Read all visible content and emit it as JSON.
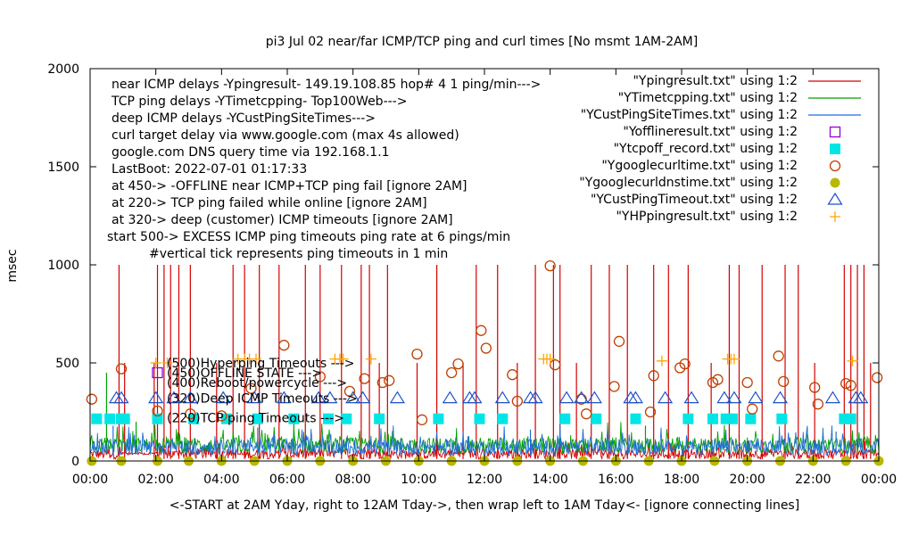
{
  "chart_data": {
    "type": "scatter",
    "title": "pi3 Jul 02  near/far ICMP/TCP ping and curl times [No msmt 1AM-2AM]",
    "xlabel": "<-START at 2AM Yday, right to 12AM Tday->, then wrap left to 1AM Tday<- [ignore connecting lines]",
    "ylabel": "msec",
    "xlim": [
      0,
      24
    ],
    "ylim": [
      0,
      2000
    ],
    "x_ticks": [
      {
        "v": 0,
        "label": "00:00"
      },
      {
        "v": 2,
        "label": "02:00"
      },
      {
        "v": 4,
        "label": "04:00"
      },
      {
        "v": 6,
        "label": "06:00"
      },
      {
        "v": 8,
        "label": "08:00"
      },
      {
        "v": 10,
        "label": "10:00"
      },
      {
        "v": 12,
        "label": "12:00"
      },
      {
        "v": 14,
        "label": "14:00"
      },
      {
        "v": 16,
        "label": "16:00"
      },
      {
        "v": 18,
        "label": "18:00"
      },
      {
        "v": 20,
        "label": "20:00"
      },
      {
        "v": 22,
        "label": "22:00"
      },
      {
        "v": 24,
        "label": "00:00"
      }
    ],
    "y_ticks": [
      {
        "v": 0,
        "label": "0"
      },
      {
        "v": 500,
        "label": "500"
      },
      {
        "v": 1000,
        "label": "1000"
      },
      {
        "v": 1500,
        "label": "1500"
      },
      {
        "v": 2000,
        "label": "2000"
      }
    ],
    "notes": [
      "near ICMP delays -Ypingresult- 149.19.108.85 hop# 4 1 ping/min--->",
      "TCP ping delays -YTimetcpping- Top100Web--->",
      "deep ICMP delays -YCustPingSiteTimes--->",
      "curl target delay via www.google.com (max 4s allowed)",
      "google.com DNS query time via 192.168.1.1",
      "LastBoot: 2022-07-01 01:17:33",
      "at 450-> -OFFLINE near ICMP+TCP ping fail [ignore 2AM]",
      "at 220-> TCP ping failed while online [ignore 2AM]",
      "at 320-> deep (customer) ICMP timeouts [ignore 2AM]",
      "start 500-> EXCESS ICMP ping timeouts ping rate at 6 pings/min",
      "#vertical tick represents ping timeouts in 1 min"
    ],
    "level_labels": [
      {
        "y": 500,
        "label": "(500)Hyperping Timeouts --->"
      },
      {
        "y": 450,
        "label": "(450)OFFLINE STATE --->"
      },
      {
        "y": 400,
        "label": "(400)Reboot/powercycle --->"
      },
      {
        "y": 320,
        "label": "(320)Deep ICMP Timeouts --->"
      },
      {
        "y": 220,
        "label": "(220)TCP ping Timeouts --->"
      }
    ],
    "legend_position": "top-right",
    "series": [
      {
        "name": "\"Ypingresult.txt\" using 1:2",
        "style": "line",
        "color": "#d40000",
        "baseline": [
          10,
          60
        ],
        "spikes": [
          {
            "x": 0.88,
            "y": 1000
          },
          {
            "x": 1.05,
            "y": 500
          },
          {
            "x": 1.95,
            "y": 500
          },
          {
            "x": 2.05,
            "y": 1000
          },
          {
            "x": 2.25,
            "y": 1000
          },
          {
            "x": 2.45,
            "y": 1000
          },
          {
            "x": 2.7,
            "y": 1000
          },
          {
            "x": 3.05,
            "y": 1000
          },
          {
            "x": 3.85,
            "y": 500
          },
          {
            "x": 4.35,
            "y": 1000
          },
          {
            "x": 4.7,
            "y": 1000
          },
          {
            "x": 5.15,
            "y": 1000
          },
          {
            "x": 5.75,
            "y": 1000
          },
          {
            "x": 6.55,
            "y": 1000
          },
          {
            "x": 7.0,
            "y": 1000
          },
          {
            "x": 7.65,
            "y": 1000
          },
          {
            "x": 8.25,
            "y": 1000
          },
          {
            "x": 8.5,
            "y": 1000
          },
          {
            "x": 8.8,
            "y": 500
          },
          {
            "x": 9.05,
            "y": 1000
          },
          {
            "x": 9.95,
            "y": 500
          },
          {
            "x": 10.55,
            "y": 1000
          },
          {
            "x": 11.35,
            "y": 500
          },
          {
            "x": 11.75,
            "y": 1000
          },
          {
            "x": 12.4,
            "y": 1000
          },
          {
            "x": 13.0,
            "y": 500
          },
          {
            "x": 13.55,
            "y": 1000
          },
          {
            "x": 14.1,
            "y": 1000
          },
          {
            "x": 14.3,
            "y": 1000
          },
          {
            "x": 14.8,
            "y": 500
          },
          {
            "x": 15.25,
            "y": 1000
          },
          {
            "x": 15.8,
            "y": 1000
          },
          {
            "x": 16.35,
            "y": 1000
          },
          {
            "x": 17.15,
            "y": 1000
          },
          {
            "x": 17.6,
            "y": 1000
          },
          {
            "x": 18.2,
            "y": 1000
          },
          {
            "x": 18.9,
            "y": 500
          },
          {
            "x": 19.45,
            "y": 1000
          },
          {
            "x": 19.75,
            "y": 1000
          },
          {
            "x": 20.45,
            "y": 1000
          },
          {
            "x": 21.15,
            "y": 1000
          },
          {
            "x": 21.55,
            "y": 1000
          },
          {
            "x": 22.05,
            "y": 500
          },
          {
            "x": 22.95,
            "y": 1000
          },
          {
            "x": 23.15,
            "y": 1000
          },
          {
            "x": 23.35,
            "y": 1000
          },
          {
            "x": 23.55,
            "y": 1000
          },
          {
            "x": 23.75,
            "y": 500
          }
        ]
      },
      {
        "name": "\"YTimetcpping.txt\" using 1:2",
        "style": "line",
        "color": "#00a000",
        "baseline": [
          40,
          120
        ],
        "spikes": [
          {
            "x": 0.5,
            "y": 450
          },
          {
            "x": 1.4,
            "y": 200
          },
          {
            "x": 6.2,
            "y": 220
          },
          {
            "x": 16.9,
            "y": 180
          }
        ]
      },
      {
        "name": "\"YCustPingSiteTimes.txt\" using 1:2",
        "style": "line",
        "color": "#1e6fd9",
        "baseline": [
          30,
          110
        ],
        "spikes": [
          {
            "x": 0.7,
            "y": 180
          },
          {
            "x": 5.1,
            "y": 170
          },
          {
            "x": 13.4,
            "y": 160
          },
          {
            "x": 22.7,
            "y": 150
          }
        ]
      },
      {
        "name": "\"Yofflineresult.txt\" using 1:2",
        "style": "open-square",
        "color": "#9400d3",
        "points": [
          {
            "x": 2.05,
            "y": 450
          }
        ]
      },
      {
        "name": "\"Ytcpoff_record.txt\" using 1:2",
        "style": "filled-square",
        "color": "#00e5e5",
        "points": [
          {
            "x": 0.2,
            "y": 215
          },
          {
            "x": 0.6,
            "y": 215
          },
          {
            "x": 0.95,
            "y": 215
          },
          {
            "x": 1.05,
            "y": 215
          },
          {
            "x": 2.05,
            "y": 215
          },
          {
            "x": 3.15,
            "y": 215
          },
          {
            "x": 4.15,
            "y": 215
          },
          {
            "x": 5.1,
            "y": 215
          },
          {
            "x": 6.2,
            "y": 215
          },
          {
            "x": 7.25,
            "y": 215
          },
          {
            "x": 7.8,
            "y": 215
          },
          {
            "x": 8.8,
            "y": 215
          },
          {
            "x": 10.6,
            "y": 215
          },
          {
            "x": 11.85,
            "y": 215
          },
          {
            "x": 12.55,
            "y": 215
          },
          {
            "x": 14.45,
            "y": 215
          },
          {
            "x": 15.4,
            "y": 215
          },
          {
            "x": 16.6,
            "y": 215
          },
          {
            "x": 18.2,
            "y": 215
          },
          {
            "x": 18.95,
            "y": 215
          },
          {
            "x": 19.35,
            "y": 215
          },
          {
            "x": 19.55,
            "y": 215
          },
          {
            "x": 20.1,
            "y": 215
          },
          {
            "x": 21.05,
            "y": 215
          },
          {
            "x": 22.95,
            "y": 215
          },
          {
            "x": 23.15,
            "y": 215
          }
        ]
      },
      {
        "name": "\"Ygooglecurltime.txt\" using 1:2",
        "style": "open-circle",
        "color": "#c04000",
        "points": [
          {
            "x": 0.05,
            "y": 315
          },
          {
            "x": 0.95,
            "y": 470
          },
          {
            "x": 2.05,
            "y": 255
          },
          {
            "x": 3.05,
            "y": 240
          },
          {
            "x": 4.0,
            "y": 230
          },
          {
            "x": 4.9,
            "y": 370
          },
          {
            "x": 5.9,
            "y": 590
          },
          {
            "x": 7.0,
            "y": 430
          },
          {
            "x": 7.9,
            "y": 355
          },
          {
            "x": 8.35,
            "y": 420
          },
          {
            "x": 8.9,
            "y": 400
          },
          {
            "x": 9.1,
            "y": 410
          },
          {
            "x": 9.95,
            "y": 545
          },
          {
            "x": 10.1,
            "y": 210
          },
          {
            "x": 11.0,
            "y": 450
          },
          {
            "x": 11.2,
            "y": 495
          },
          {
            "x": 11.9,
            "y": 665
          },
          {
            "x": 12.05,
            "y": 575
          },
          {
            "x": 12.85,
            "y": 440
          },
          {
            "x": 13.0,
            "y": 305
          },
          {
            "x": 14.0,
            "y": 995
          },
          {
            "x": 14.15,
            "y": 490
          },
          {
            "x": 14.95,
            "y": 315
          },
          {
            "x": 15.1,
            "y": 240
          },
          {
            "x": 15.95,
            "y": 380
          },
          {
            "x": 16.1,
            "y": 610
          },
          {
            "x": 17.05,
            "y": 250
          },
          {
            "x": 17.15,
            "y": 435
          },
          {
            "x": 17.95,
            "y": 475
          },
          {
            "x": 18.1,
            "y": 495
          },
          {
            "x": 18.95,
            "y": 400
          },
          {
            "x": 19.1,
            "y": 415
          },
          {
            "x": 20.0,
            "y": 400
          },
          {
            "x": 20.15,
            "y": 265
          },
          {
            "x": 20.95,
            "y": 535
          },
          {
            "x": 21.1,
            "y": 405
          },
          {
            "x": 22.05,
            "y": 375
          },
          {
            "x": 22.15,
            "y": 290
          },
          {
            "x": 23.0,
            "y": 395
          },
          {
            "x": 23.15,
            "y": 385
          },
          {
            "x": 23.95,
            "y": 425
          }
        ]
      },
      {
        "name": "\"Ygooglecurldnstime.txt\" using 1:2",
        "style": "filled-circle",
        "color": "#b8b800",
        "points": [
          {
            "x": 0.05,
            "y": 0
          },
          {
            "x": 0.95,
            "y": 0
          },
          {
            "x": 2.05,
            "y": 0
          },
          {
            "x": 3.0,
            "y": 0
          },
          {
            "x": 4.0,
            "y": 0
          },
          {
            "x": 5.0,
            "y": 0
          },
          {
            "x": 6.0,
            "y": 0
          },
          {
            "x": 7.0,
            "y": 0
          },
          {
            "x": 8.0,
            "y": 0
          },
          {
            "x": 9.0,
            "y": 0
          },
          {
            "x": 10.0,
            "y": 0
          },
          {
            "x": 11.0,
            "y": 0
          },
          {
            "x": 12.0,
            "y": 0
          },
          {
            "x": 13.0,
            "y": 0
          },
          {
            "x": 14.0,
            "y": 0
          },
          {
            "x": 15.0,
            "y": 0
          },
          {
            "x": 16.0,
            "y": 0
          },
          {
            "x": 17.0,
            "y": 0
          },
          {
            "x": 18.0,
            "y": 0
          },
          {
            "x": 19.0,
            "y": 0
          },
          {
            "x": 20.0,
            "y": 0
          },
          {
            "x": 21.0,
            "y": 0
          },
          {
            "x": 22.0,
            "y": 0
          },
          {
            "x": 23.0,
            "y": 0
          },
          {
            "x": 24.0,
            "y": 0
          }
        ]
      },
      {
        "name": "\"YCustPingTimeout.txt\" using 1:2",
        "style": "open-triangle",
        "color": "#1e50c8",
        "points": [
          {
            "x": 0.8,
            "y": 320
          },
          {
            "x": 0.95,
            "y": 320
          },
          {
            "x": 2.0,
            "y": 320
          },
          {
            "x": 2.55,
            "y": 320
          },
          {
            "x": 3.05,
            "y": 320
          },
          {
            "x": 4.05,
            "y": 320
          },
          {
            "x": 5.0,
            "y": 320
          },
          {
            "x": 5.9,
            "y": 320
          },
          {
            "x": 6.95,
            "y": 320
          },
          {
            "x": 7.3,
            "y": 320
          },
          {
            "x": 8.0,
            "y": 320
          },
          {
            "x": 8.3,
            "y": 320
          },
          {
            "x": 9.35,
            "y": 320
          },
          {
            "x": 10.95,
            "y": 320
          },
          {
            "x": 11.55,
            "y": 320
          },
          {
            "x": 11.7,
            "y": 320
          },
          {
            "x": 12.55,
            "y": 320
          },
          {
            "x": 13.4,
            "y": 320
          },
          {
            "x": 13.55,
            "y": 320
          },
          {
            "x": 14.5,
            "y": 320
          },
          {
            "x": 14.95,
            "y": 320
          },
          {
            "x": 15.35,
            "y": 320
          },
          {
            "x": 16.45,
            "y": 320
          },
          {
            "x": 16.6,
            "y": 320
          },
          {
            "x": 17.5,
            "y": 320
          },
          {
            "x": 18.3,
            "y": 320
          },
          {
            "x": 19.3,
            "y": 320
          },
          {
            "x": 19.6,
            "y": 320
          },
          {
            "x": 20.25,
            "y": 320
          },
          {
            "x": 21.0,
            "y": 320
          },
          {
            "x": 22.6,
            "y": 320
          },
          {
            "x": 23.3,
            "y": 320
          },
          {
            "x": 23.45,
            "y": 320
          }
        ]
      },
      {
        "name": "\"YHPpingresult.txt\" using 1:2",
        "style": "plus",
        "color": "#ffa500",
        "points": [
          {
            "x": 2.0,
            "y": 500
          },
          {
            "x": 2.35,
            "y": 500
          },
          {
            "x": 4.5,
            "y": 520
          },
          {
            "x": 4.7,
            "y": 520
          },
          {
            "x": 4.85,
            "y": 520
          },
          {
            "x": 5.05,
            "y": 520
          },
          {
            "x": 7.45,
            "y": 520
          },
          {
            "x": 7.6,
            "y": 520
          },
          {
            "x": 7.7,
            "y": 520
          },
          {
            "x": 8.55,
            "y": 520
          },
          {
            "x": 13.8,
            "y": 520
          },
          {
            "x": 13.9,
            "y": 520
          },
          {
            "x": 14.0,
            "y": 520
          },
          {
            "x": 17.4,
            "y": 510
          },
          {
            "x": 19.4,
            "y": 520
          },
          {
            "x": 19.5,
            "y": 520
          },
          {
            "x": 19.6,
            "y": 520
          },
          {
            "x": 23.2,
            "y": 510
          }
        ]
      }
    ]
  }
}
